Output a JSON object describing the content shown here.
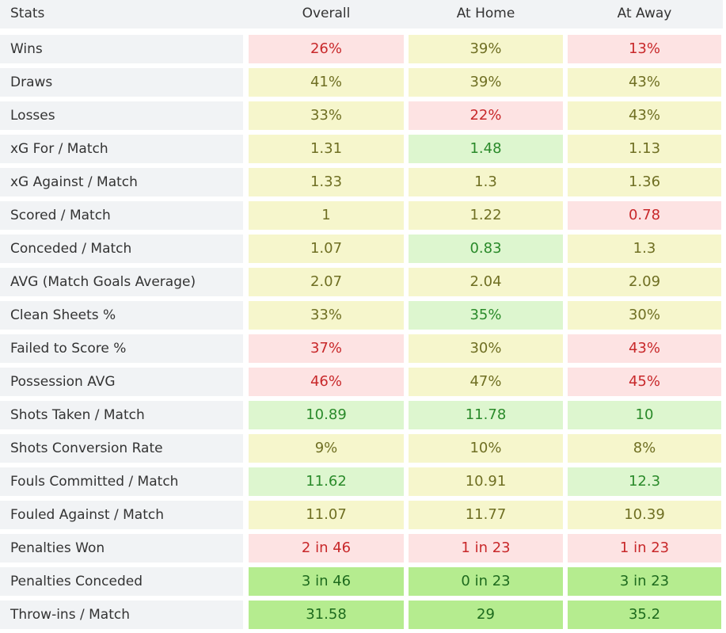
{
  "header": {
    "stats": "Stats",
    "overall": "Overall",
    "home": "At Home",
    "away": "At Away"
  },
  "status_colors": {
    "bad": "#fde3e3",
    "neutral": "#f6f6cc",
    "good": "#ddf6cf",
    "strong": "#b5ec8f"
  },
  "rows": [
    {
      "label": "Wins",
      "overall": {
        "v": "26%",
        "s": "bad"
      },
      "home": {
        "v": "39%",
        "s": "neutral"
      },
      "away": {
        "v": "13%",
        "s": "bad"
      }
    },
    {
      "label": "Draws",
      "overall": {
        "v": "41%",
        "s": "neutral"
      },
      "home": {
        "v": "39%",
        "s": "neutral"
      },
      "away": {
        "v": "43%",
        "s": "neutral"
      }
    },
    {
      "label": "Losses",
      "overall": {
        "v": "33%",
        "s": "neutral"
      },
      "home": {
        "v": "22%",
        "s": "bad"
      },
      "away": {
        "v": "43%",
        "s": "neutral"
      }
    },
    {
      "label": "xG For / Match",
      "overall": {
        "v": "1.31",
        "s": "neutral"
      },
      "home": {
        "v": "1.48",
        "s": "good"
      },
      "away": {
        "v": "1.13",
        "s": "neutral"
      }
    },
    {
      "label": "xG Against / Match",
      "overall": {
        "v": "1.33",
        "s": "neutral"
      },
      "home": {
        "v": "1.3",
        "s": "neutral"
      },
      "away": {
        "v": "1.36",
        "s": "neutral"
      }
    },
    {
      "label": "Scored / Match",
      "overall": {
        "v": "1",
        "s": "neutral"
      },
      "home": {
        "v": "1.22",
        "s": "neutral"
      },
      "away": {
        "v": "0.78",
        "s": "bad"
      }
    },
    {
      "label": "Conceded / Match",
      "overall": {
        "v": "1.07",
        "s": "neutral"
      },
      "home": {
        "v": "0.83",
        "s": "good"
      },
      "away": {
        "v": "1.3",
        "s": "neutral"
      }
    },
    {
      "label": "AVG (Match Goals Average)",
      "overall": {
        "v": "2.07",
        "s": "neutral"
      },
      "home": {
        "v": "2.04",
        "s": "neutral"
      },
      "away": {
        "v": "2.09",
        "s": "neutral"
      }
    },
    {
      "label": "Clean Sheets %",
      "overall": {
        "v": "33%",
        "s": "neutral"
      },
      "home": {
        "v": "35%",
        "s": "good"
      },
      "away": {
        "v": "30%",
        "s": "neutral"
      }
    },
    {
      "label": "Failed to Score %",
      "overall": {
        "v": "37%",
        "s": "bad"
      },
      "home": {
        "v": "30%",
        "s": "neutral"
      },
      "away": {
        "v": "43%",
        "s": "bad"
      }
    },
    {
      "label": "Possession AVG",
      "overall": {
        "v": "46%",
        "s": "bad"
      },
      "home": {
        "v": "47%",
        "s": "neutral"
      },
      "away": {
        "v": "45%",
        "s": "bad"
      }
    },
    {
      "label": "Shots Taken / Match",
      "overall": {
        "v": "10.89",
        "s": "good"
      },
      "home": {
        "v": "11.78",
        "s": "good"
      },
      "away": {
        "v": "10",
        "s": "good"
      }
    },
    {
      "label": "Shots Conversion Rate",
      "overall": {
        "v": "9%",
        "s": "neutral"
      },
      "home": {
        "v": "10%",
        "s": "neutral"
      },
      "away": {
        "v": "8%",
        "s": "neutral"
      }
    },
    {
      "label": "Fouls Committed / Match",
      "overall": {
        "v": "11.62",
        "s": "good"
      },
      "home": {
        "v": "10.91",
        "s": "neutral"
      },
      "away": {
        "v": "12.3",
        "s": "good"
      }
    },
    {
      "label": "Fouled Against / Match",
      "overall": {
        "v": "11.07",
        "s": "neutral"
      },
      "home": {
        "v": "11.77",
        "s": "neutral"
      },
      "away": {
        "v": "10.39",
        "s": "neutral"
      }
    },
    {
      "label": "Penalties Won",
      "overall": {
        "v": "2 in 46",
        "s": "bad"
      },
      "home": {
        "v": "1 in 23",
        "s": "bad"
      },
      "away": {
        "v": "1 in 23",
        "s": "bad"
      }
    },
    {
      "label": "Penalties Conceded",
      "overall": {
        "v": "3 in 46",
        "s": "strong"
      },
      "home": {
        "v": "0 in 23",
        "s": "strong"
      },
      "away": {
        "v": "3 in 23",
        "s": "strong"
      }
    },
    {
      "label": "Throw-ins / Match",
      "overall": {
        "v": "31.58",
        "s": "strong"
      },
      "home": {
        "v": "29",
        "s": "strong"
      },
      "away": {
        "v": "35.2",
        "s": "strong"
      }
    }
  ]
}
